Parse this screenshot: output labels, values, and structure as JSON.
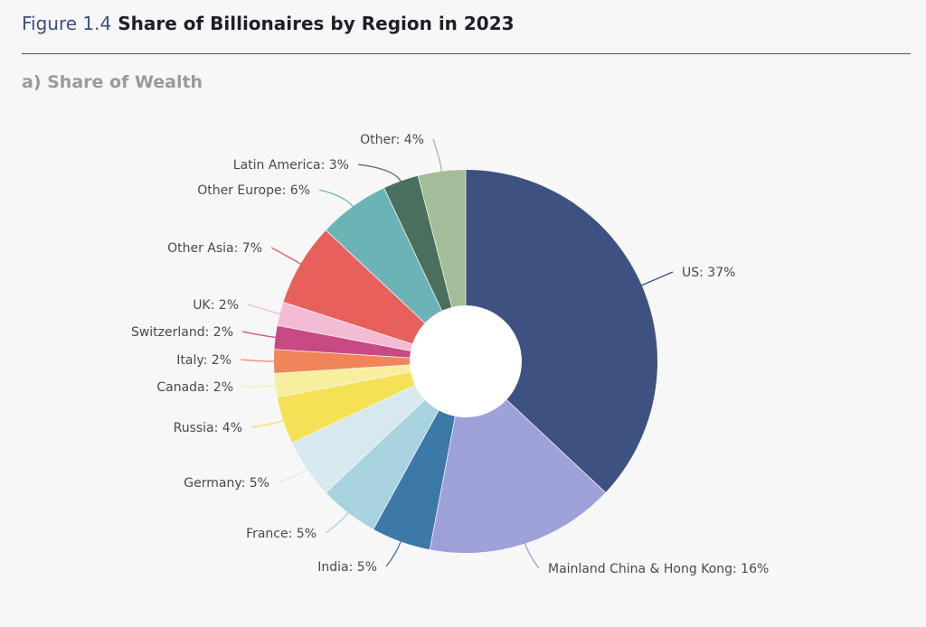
{
  "figure": {
    "number": "Figure 1.4",
    "title": "Share of Billionaires by Region in 2023",
    "subtitle": "a) Share of Wealth"
  },
  "chart_data": {
    "type": "pie",
    "variant": "donut",
    "title": "Share of Billionaires by Region in 2023",
    "subtitle": "a) Share of Wealth",
    "unit": "%",
    "slices": [
      {
        "label": "US: 37%",
        "name": "US",
        "value": 37,
        "color": "#3e5281"
      },
      {
        "label": "Mainland China & Hong Kong: 16%",
        "name": "Mainland China & Hong Kong",
        "value": 16,
        "color": "#9ea1d8"
      },
      {
        "label": "India: 5%",
        "name": "India",
        "value": 5,
        "color": "#3c78a8"
      },
      {
        "label": "France: 5%",
        "name": "France",
        "value": 5,
        "color": "#a7d3df"
      },
      {
        "label": "Germany: 5%",
        "name": "Germany",
        "value": 5,
        "color": "#d7e9ee"
      },
      {
        "label": "Russia: 4%",
        "name": "Russia",
        "value": 4,
        "color": "#f5e156"
      },
      {
        "label": "Canada: 2%",
        "name": "Canada",
        "value": 2,
        "color": "#f7ef9d"
      },
      {
        "label": "Italy: 2%",
        "name": "Italy",
        "value": 2,
        "color": "#f0855a"
      },
      {
        "label": "Switzerland: 2%",
        "name": "Switzerland",
        "value": 2,
        "color": "#c74a84"
      },
      {
        "label": "UK: 2%",
        "name": "UK",
        "value": 2,
        "color": "#f4bcd4"
      },
      {
        "label": "Other Asia: 7%",
        "name": "Other Asia",
        "value": 7,
        "color": "#e8605c"
      },
      {
        "label": "Other Europe: 6%",
        "name": "Other Europe",
        "value": 6,
        "color": "#6cb3b5"
      },
      {
        "label": "Latin America: 3%",
        "name": "Latin America",
        "value": 3,
        "color": "#4a6f5e"
      },
      {
        "label": "Other: 4%",
        "name": "Other",
        "value": 4,
        "color": "#a4bd98"
      }
    ],
    "legend": "none"
  }
}
